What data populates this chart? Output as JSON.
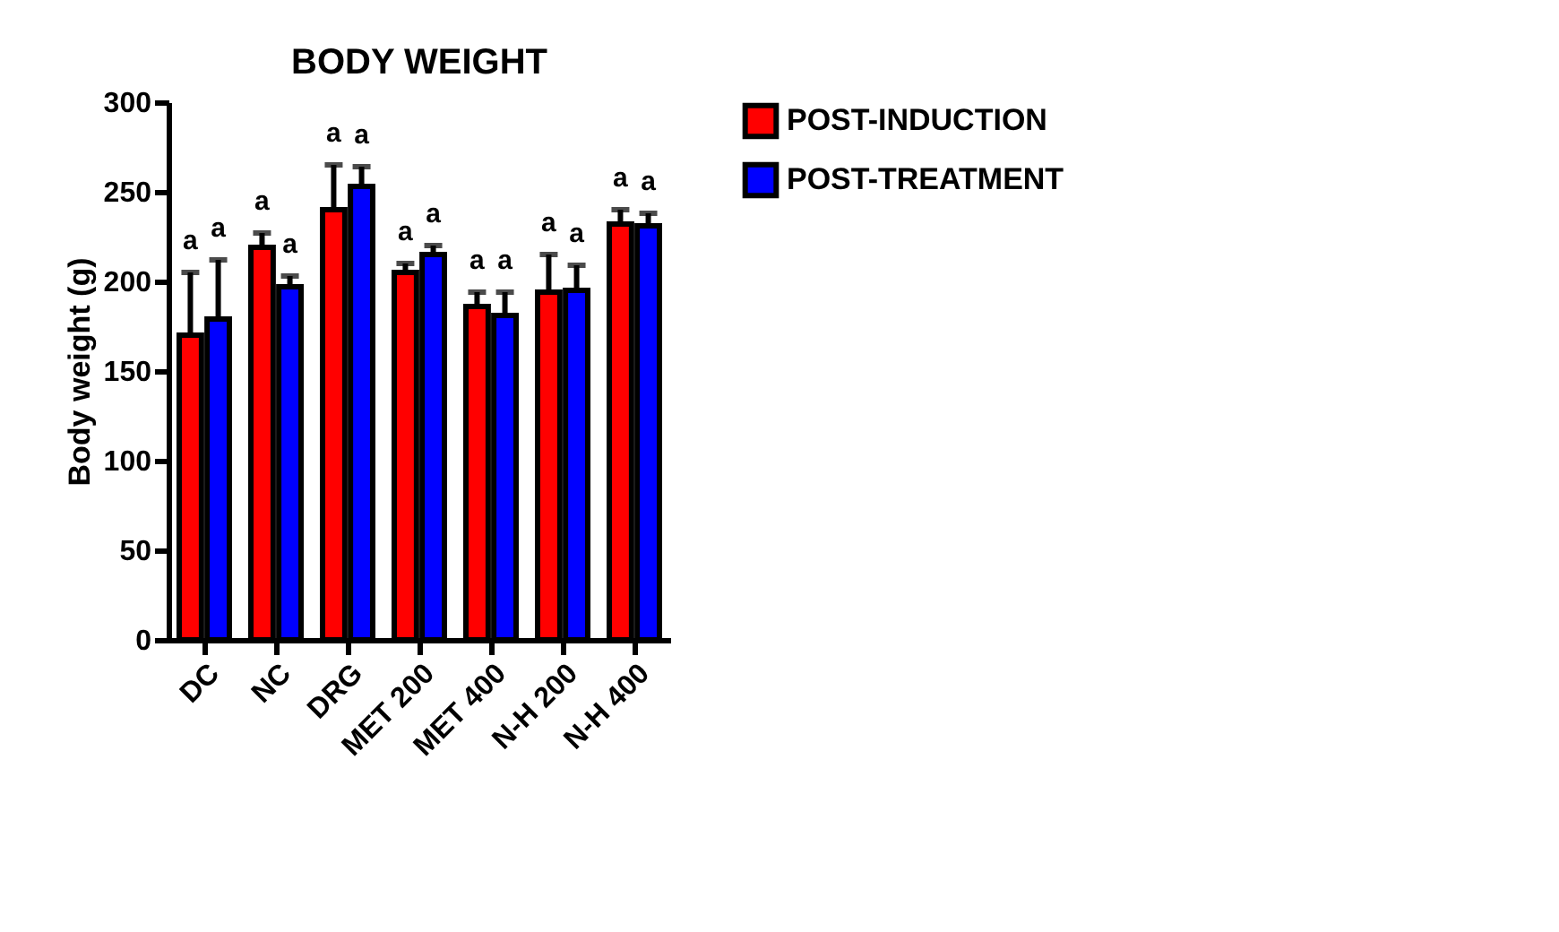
{
  "chart_data": {
    "type": "bar",
    "title": "BODY WEIGHT",
    "ylabel": "Body weight (g)",
    "categories": [
      "DC",
      "NC",
      "DRG",
      "MET 200",
      "MET 400",
      "N-H 200",
      "N-H 400"
    ],
    "series": [
      {
        "name": "POST-INDUCTION",
        "color": "#ff0000",
        "values": [
          170,
          219,
          240,
          205,
          186,
          194,
          232
        ],
        "errors": [
          [
            170,
            205
          ],
          [
            219,
            227
          ],
          [
            240,
            265
          ],
          [
            205,
            210
          ],
          [
            186,
            194
          ],
          [
            194,
            215
          ],
          [
            232,
            240
          ]
        ],
        "value_labels": [
          "a",
          "a",
          "a",
          "a",
          "a",
          "a",
          "a"
        ]
      },
      {
        "name": "POST-TREATMENT",
        "color": "#0000ff",
        "values": [
          179,
          197,
          253,
          215,
          181,
          195,
          231
        ],
        "errors": [
          [
            179,
            212
          ],
          [
            197,
            203
          ],
          [
            253,
            264
          ],
          [
            215,
            220
          ],
          [
            181,
            194
          ],
          [
            195,
            209
          ],
          [
            231,
            238
          ]
        ],
        "value_labels": [
          "a",
          "a",
          "a",
          "a",
          "a",
          "a",
          "a"
        ]
      }
    ],
    "ylim": [
      0,
      300
    ],
    "yticks": [
      0,
      50,
      100,
      150,
      200,
      250,
      300
    ],
    "grid": false,
    "legend": "top right"
  }
}
